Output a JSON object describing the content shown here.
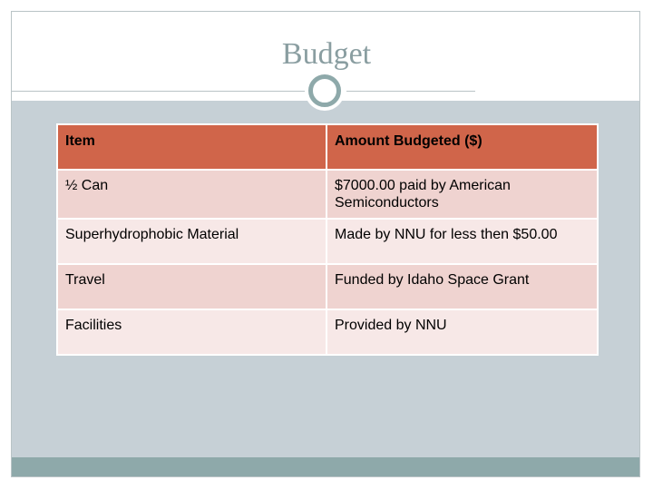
{
  "slide": {
    "title": "Budget"
  },
  "table": {
    "headers": [
      "Item",
      "Amount Budgeted ($)"
    ],
    "rows": [
      [
        "½ Can",
        "$7000.00 paid by American Semiconductors"
      ],
      [
        "Superhydrophobic Material",
        "Made by NNU for less then $50.00"
      ],
      [
        "Travel",
        "Funded by Idaho Space Grant"
      ],
      [
        "Facilities",
        "Provided by NNU"
      ]
    ]
  },
  "colors": {
    "header_fill": "#d0654a",
    "row_dark_fill": "#efd3d0",
    "row_light_fill": "#f7e8e7",
    "background_panel": "#c6d0d6",
    "accent": "#8ea9aa"
  }
}
